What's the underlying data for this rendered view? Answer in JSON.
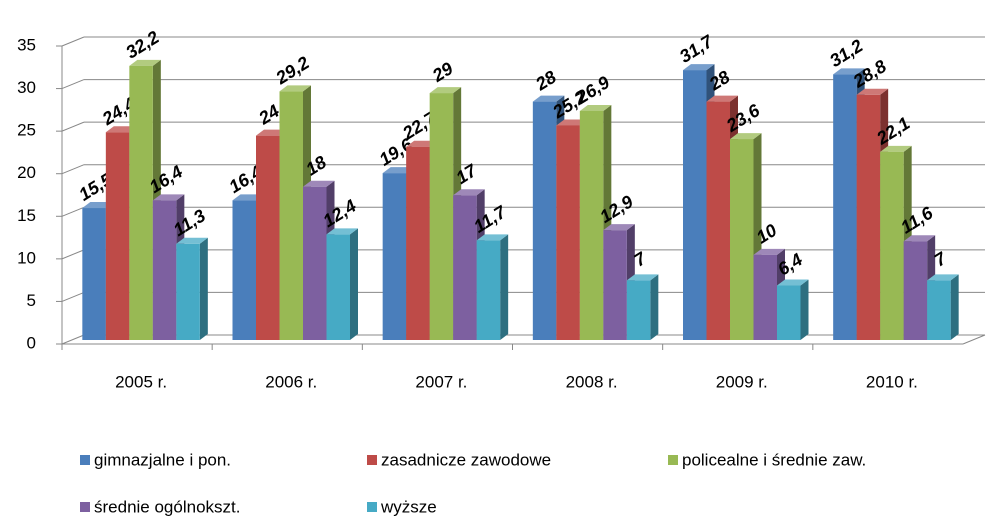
{
  "chart_data": {
    "type": "bar3d",
    "categories": [
      "2005 r.",
      "2006 r.",
      "2007 r.",
      "2008 r.",
      "2009 r.",
      "2010 r."
    ],
    "series": [
      {
        "name": "gimnazjalne i pon.",
        "color": "#4a7ebb",
        "label_color": "#1f3864",
        "values": [
          15.5,
          16.4,
          19.6,
          28,
          31.7,
          31.2
        ],
        "value_labels": [
          "15,5",
          "16,4",
          "19,6",
          "28",
          "31,7",
          "31,2"
        ]
      },
      {
        "name": "zasadnicze zawodowe",
        "color": "#be4b48",
        "label_color": "#943634",
        "values": [
          24.4,
          24,
          22.7,
          25.2,
          28,
          28.8
        ],
        "value_labels": [
          "24,4",
          "24",
          "22,7",
          "25,2",
          "28",
          "28,8"
        ]
      },
      {
        "name": "policealne i średnie zaw.",
        "color": "#98b954",
        "label_color": "#4f6228",
        "values": [
          32.2,
          29.2,
          29,
          26.9,
          23.6,
          22.1
        ],
        "value_labels": [
          "32,2",
          "29,2",
          "29",
          "26,9",
          "23,6",
          "22,1"
        ]
      },
      {
        "name": "średnie ogólnokszt.",
        "color": "#7d60a0",
        "label_color": "#3f3151",
        "values": [
          16.4,
          18,
          17,
          12.9,
          10,
          11.6
        ],
        "value_labels": [
          "16,4",
          "18",
          "17",
          "12,9",
          "10",
          "11,6"
        ]
      },
      {
        "name": "wyższe",
        "color": "#46aac5",
        "label_color": "#31849b",
        "values": [
          11.3,
          12.4,
          11.7,
          7,
          6.4,
          7
        ],
        "value_labels": [
          "11,3",
          "12,4",
          "11,7",
          "7",
          "6,4",
          "7"
        ]
      }
    ],
    "ylim": [
      0,
      35
    ],
    "yticks": [
      0,
      5,
      10,
      15,
      20,
      25,
      30,
      35
    ],
    "grid": true,
    "legend": "bottom"
  }
}
